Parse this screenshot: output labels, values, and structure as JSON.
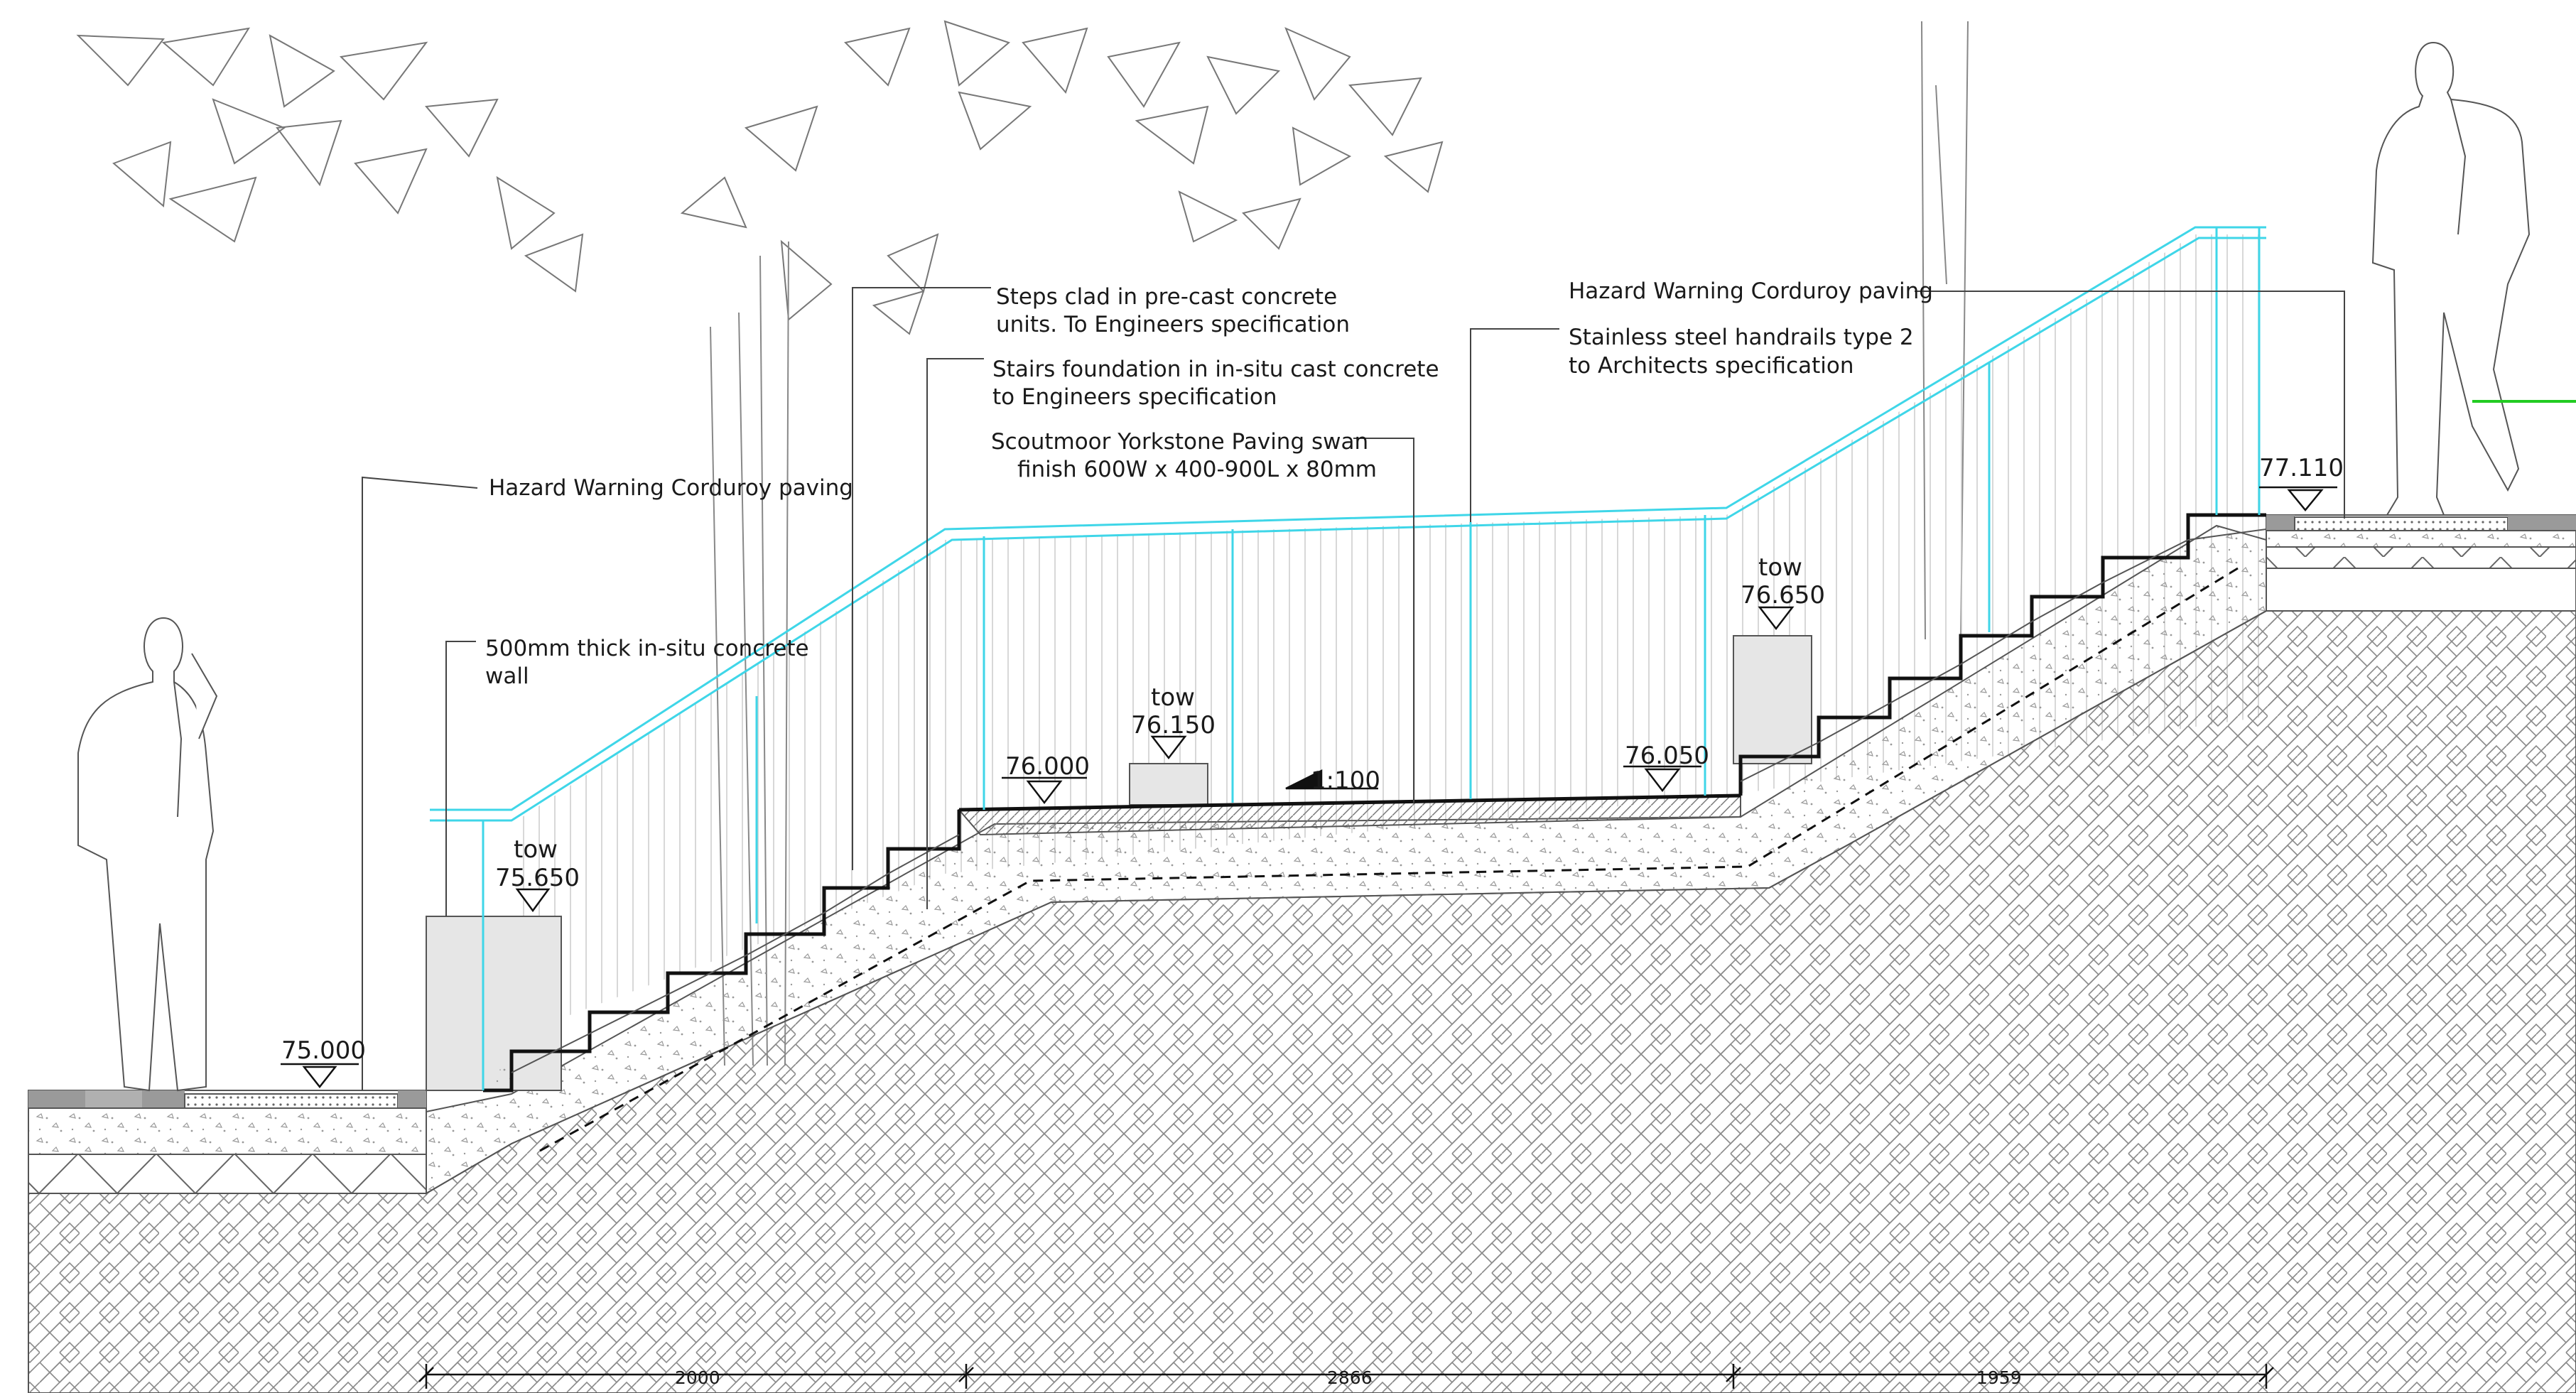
{
  "annotations": {
    "corduroy_left": "Hazard Warning Corduroy paving",
    "wall_line1": "500mm thick in-situ concrete",
    "wall_line2": "wall",
    "steps_line1": "Steps  clad in pre-cast concrete",
    "steps_line2": "units.  To Engineers specification",
    "foundation_line1": "Stairs foundation in in-situ cast concrete",
    "foundation_line2": "to Engineers specification",
    "paving_line1": "Scoutmoor Yorkstone Paving swan",
    "paving_line2": "finish 600W x 400-900L x 80mm",
    "corduroy_right": "Hazard Warning Corduroy paving",
    "handrail_line1": "Stainless steel handrails type 2",
    "handrail_line2": "to Architects specification"
  },
  "levels": {
    "ground_low": "75.000",
    "tow_left_label": "tow",
    "tow_left_value": "75.650",
    "landing_start": "76.000",
    "tow_mid_label": "tow",
    "tow_mid_value": "76.150",
    "fall": "1:100",
    "landing_end": "76.050",
    "tow_right_label": "tow",
    "tow_right_value": "76.650",
    "ground_high": "77.110"
  },
  "dimensions": {
    "run_1": "2000",
    "run_2": "2866",
    "run_3": "1959"
  },
  "colors": {
    "handrail": "#3fd6e8",
    "grass": "#22cc22",
    "wall_fill": "#e6e6e6",
    "paving_dark": "#9a9a9a"
  }
}
